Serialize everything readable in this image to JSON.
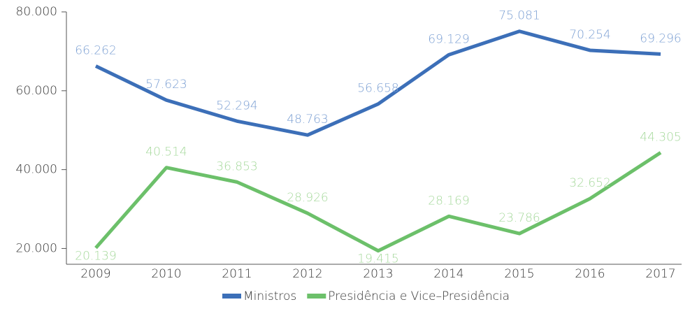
{
  "chart_data": {
    "type": "line",
    "categories": [
      "2009",
      "2010",
      "2011",
      "2012",
      "2013",
      "2014",
      "2015",
      "2016",
      "2017"
    ],
    "series": [
      {
        "name": "Ministros",
        "color": "#3c6fb8",
        "label_color": "#7b9fd3",
        "values": [
          66262,
          57623,
          52294,
          48763,
          56658,
          69129,
          75081,
          70254,
          69296
        ],
        "value_labels": [
          "66.262",
          "57.623",
          "52.294",
          "48.763",
          "56.658",
          "69.129",
          "75.081",
          "70.254",
          "69.296"
        ]
      },
      {
        "name": "Presidência e Vice–Presidência",
        "color": "#6cc06a",
        "label_color": "#a6d99c",
        "values": [
          20139,
          40514,
          36853,
          28926,
          19415,
          28169,
          23786,
          32652,
          44305
        ],
        "value_labels": [
          "20.139",
          "40.514",
          "36.853",
          "28.926",
          "19.415",
          "28.169",
          "23.786",
          "32.652",
          "44.305"
        ]
      }
    ],
    "ylim": [
      16000,
      80000
    ],
    "yticks": [
      {
        "value": 20000,
        "label": "20.000"
      },
      {
        "value": 40000,
        "label": "40.000"
      },
      {
        "value": 60000,
        "label": "60.000"
      },
      {
        "value": 80000,
        "label": "80.000"
      }
    ],
    "legend": "bottom"
  }
}
